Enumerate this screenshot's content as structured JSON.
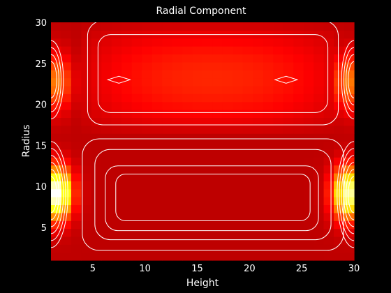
{
  "chart_data": {
    "type": "heatmap",
    "title": "Radial Component",
    "xlabel": "Height",
    "ylabel": "Radius",
    "xlim": [
      1,
      30
    ],
    "ylim": [
      1,
      30
    ],
    "xticks": [
      5,
      10,
      15,
      20,
      25,
      30
    ],
    "yticks": [
      5,
      10,
      15,
      20,
      25,
      30
    ],
    "colormap": "hot",
    "grid": false,
    "contour_color": "#ffffff",
    "field": {
      "grid_size": [
        30,
        30
      ],
      "description_values": "relative intensity 0 (dark red) to 1 (white/yellow)",
      "base": 0.28,
      "upper_lobe": {
        "y_range": [
          17,
          30
        ],
        "x_range": [
          5,
          28
        ],
        "peak": 0.43,
        "peak_points": [
          [
            7.5,
            23
          ],
          [
            23.5,
            23
          ]
        ]
      },
      "lower_lobe": {
        "y_range": [
          1,
          16
        ],
        "x_range": [
          5,
          28
        ],
        "min": 0.14,
        "min_points": [
          [
            10,
            9
          ],
          [
            20,
            9
          ]
        ]
      },
      "edge_hotspots": [
        {
          "x": 1,
          "y": 9,
          "peak": 1.0,
          "side": "left-lower"
        },
        {
          "x": 30,
          "y": 9,
          "peak": 0.9,
          "side": "right-lower"
        },
        {
          "x": 1,
          "y": 23,
          "peak": 0.55,
          "side": "left-upper"
        },
        {
          "x": 30,
          "y": 23,
          "peak": 0.55,
          "side": "right-upper"
        }
      ]
    }
  }
}
